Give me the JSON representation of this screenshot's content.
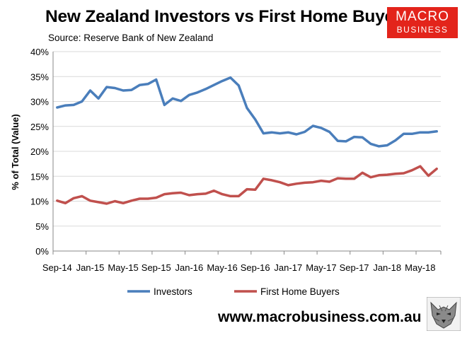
{
  "header": {
    "title": "New Zealand Investors vs First Home Buyers",
    "subtitle": "Source: Reserve Bank of New Zealand"
  },
  "logo": {
    "line1": "MACRO",
    "line2": "BUSINESS",
    "color": "#e3241b"
  },
  "footer": {
    "url": "www.macrobusiness.com.au"
  },
  "chart_data": {
    "type": "line",
    "ylabel": "% of Total (Value)",
    "xlabel": "",
    "ylim": [
      0,
      40
    ],
    "y_ticks": [
      "0%",
      "5%",
      "10%",
      "15%",
      "20%",
      "25%",
      "30%",
      "35%",
      "40%"
    ],
    "x_ticks": [
      {
        "index": 0,
        "label": "Sep-14"
      },
      {
        "index": 4,
        "label": "Jan-15"
      },
      {
        "index": 8,
        "label": "May-15"
      },
      {
        "index": 12,
        "label": "Sep-15"
      },
      {
        "index": 16,
        "label": "Jan-16"
      },
      {
        "index": 20,
        "label": "May-16"
      },
      {
        "index": 24,
        "label": "Sep-16"
      },
      {
        "index": 28,
        "label": "Jan-17"
      },
      {
        "index": 32,
        "label": "May-17"
      },
      {
        "index": 36,
        "label": "Sep-17"
      },
      {
        "index": 40,
        "label": "Jan-18"
      },
      {
        "index": 44,
        "label": "May-18"
      }
    ],
    "x": [
      "Sep-14",
      "Oct-14",
      "Nov-14",
      "Dec-14",
      "Jan-15",
      "Feb-15",
      "Mar-15",
      "Apr-15",
      "May-15",
      "Jun-15",
      "Jul-15",
      "Aug-15",
      "Sep-15",
      "Oct-15",
      "Nov-15",
      "Dec-15",
      "Jan-16",
      "Feb-16",
      "Mar-16",
      "Apr-16",
      "May-16",
      "Jun-16",
      "Jul-16",
      "Aug-16",
      "Sep-16",
      "Oct-16",
      "Nov-16",
      "Dec-16",
      "Jan-17",
      "Feb-17",
      "Mar-17",
      "Apr-17",
      "May-17",
      "Jun-17",
      "Jul-17",
      "Aug-17",
      "Sep-17",
      "Oct-17",
      "Nov-17",
      "Dec-17",
      "Jan-18",
      "Feb-18",
      "Mar-18",
      "Apr-18",
      "May-18",
      "Jun-18",
      "Jul-18"
    ],
    "series": [
      {
        "name": "Investors",
        "color": "#4a7ebb",
        "values": [
          28.8,
          29.2,
          29.3,
          30.0,
          32.2,
          30.6,
          32.9,
          32.7,
          32.2,
          32.3,
          33.3,
          33.5,
          34.4,
          29.3,
          30.6,
          30.1,
          31.3,
          31.8,
          32.5,
          33.3,
          34.1,
          34.8,
          33.2,
          28.7,
          26.4,
          23.6,
          23.8,
          23.6,
          23.8,
          23.4,
          23.9,
          25.1,
          24.7,
          23.9,
          22.1,
          22.0,
          22.9,
          22.8,
          21.5,
          21.0,
          21.2,
          22.2,
          23.5,
          23.5,
          23.8,
          23.8,
          24.0
        ]
      },
      {
        "name": "First Home Buyers",
        "color": "#c0504d",
        "values": [
          10.1,
          9.6,
          10.6,
          11.0,
          10.1,
          9.8,
          9.5,
          10.0,
          9.6,
          10.1,
          10.5,
          10.5,
          10.7,
          11.4,
          11.6,
          11.7,
          11.2,
          11.4,
          11.5,
          12.1,
          11.4,
          11.0,
          11.0,
          12.4,
          12.3,
          14.5,
          14.2,
          13.8,
          13.2,
          13.5,
          13.7,
          13.8,
          14.1,
          13.9,
          14.6,
          14.5,
          14.5,
          15.7,
          14.8,
          15.2,
          15.3,
          15.5,
          15.6,
          16.2,
          17.0,
          15.1,
          16.5
        ]
      }
    ],
    "legend_position": "bottom",
    "grid": true
  }
}
